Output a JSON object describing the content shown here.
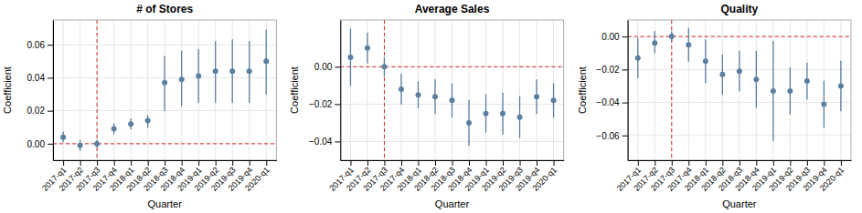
{
  "chart_data": [
    {
      "type": "scatter",
      "title": "# of Stores",
      "x_label": "Quarter",
      "y_label": "Coefficient",
      "categories": [
        "2017-q1",
        "2017-q2",
        "2017-q3",
        "2017-q4",
        "2018-q1",
        "2018-q2",
        "2018-q3",
        "2018-q4",
        "2019-q1",
        "2019-q2",
        "2019-q3",
        "2019-q4",
        "2020-q1"
      ],
      "values": [
        0.004,
        -0.001,
        0.0,
        0.009,
        0.012,
        0.014,
        0.037,
        0.039,
        0.041,
        0.044,
        0.044,
        0.044,
        0.05
      ],
      "ci_lo": [
        0.001,
        -0.004,
        -0.002,
        0.006,
        0.009,
        0.01,
        0.02,
        0.023,
        0.025,
        0.025,
        0.025,
        0.025,
        0.03
      ],
      "ci_hi": [
        0.007,
        0.002,
        0.002,
        0.012,
        0.015,
        0.017,
        0.053,
        0.056,
        0.057,
        0.062,
        0.063,
        0.062,
        0.069
      ],
      "color": "#5a7fa0",
      "hline": 0,
      "vline": "2017-q3",
      "ylim": [
        -0.01,
        0.075
      ],
      "yticks": [
        {
          "value": 0,
          "label": "0.00"
        },
        0.02,
        0.04,
        0.06
      ],
      "grid": true
    },
    {
      "type": "scatter",
      "title": "Average Sales",
      "x_label": "Quarter",
      "y_label": "Coefficient",
      "categories": [
        "2017-q1",
        "2017-q2",
        "2017-q3",
        "2017-q4",
        "2018-q1",
        "2018-q2",
        "2018-q3",
        "2018-q4",
        "2019-q1",
        "2019-q2",
        "2019-q3",
        "2019-q4",
        "2020-q1"
      ],
      "values": [
        0.005,
        0.01,
        0.0,
        -0.012,
        -0.015,
        -0.016,
        -0.018,
        -0.03,
        -0.025,
        -0.025,
        -0.027,
        -0.016,
        -0.018
      ],
      "ci_lo": [
        -0.01,
        0.002,
        -0.005,
        -0.02,
        -0.022,
        -0.025,
        -0.027,
        -0.042,
        -0.035,
        -0.036,
        -0.038,
        -0.025,
        -0.027
      ],
      "ci_hi": [
        0.02,
        0.018,
        0.005,
        -0.004,
        -0.008,
        -0.007,
        -0.009,
        -0.018,
        -0.015,
        -0.014,
        -0.016,
        -0.007,
        -0.009
      ],
      "color": "#5a7fa0",
      "hline": 0,
      "vline": "2017-q3",
      "ylim": [
        -0.05,
        0.025
      ],
      "yticks": [
        {
          "value": -0.04,
          "label": "−0.04"
        },
        {
          "value": -0.02,
          "label": "−0.02"
        },
        {
          "value": 0,
          "label": "0.00"
        }
      ],
      "grid": true
    },
    {
      "type": "scatter",
      "title": "Quality",
      "x_label": "Quarter",
      "y_label": "Coefficient",
      "categories": [
        "2017-q1",
        "2017-q2",
        "2017-q3",
        "2017-q4",
        "2018-q1",
        "2018-q2",
        "2018-q3",
        "2018-q4",
        "2019-q1",
        "2019-q2",
        "2019-q3",
        "2019-q4",
        "2020-q1"
      ],
      "values": [
        -0.013,
        -0.004,
        0.0,
        -0.005,
        -0.015,
        -0.023,
        -0.021,
        -0.026,
        -0.033,
        -0.033,
        -0.027,
        -0.041,
        -0.03
      ],
      "ci_lo": [
        -0.025,
        -0.01,
        -0.003,
        -0.015,
        -0.028,
        -0.035,
        -0.033,
        -0.043,
        -0.063,
        -0.047,
        -0.038,
        -0.055,
        -0.045
      ],
      "ci_hi": [
        -0.001,
        0.003,
        0.003,
        0.005,
        -0.002,
        -0.011,
        -0.009,
        -0.009,
        -0.003,
        -0.019,
        -0.016,
        -0.027,
        -0.015
      ],
      "color": "#5a7fa0",
      "hline": 0,
      "vline": "2017-q3",
      "ylim": [
        -0.075,
        0.01
      ],
      "yticks": [
        {
          "value": -0.06,
          "label": "−0.06"
        },
        {
          "value": -0.04,
          "label": "−0.04"
        },
        {
          "value": -0.02,
          "label": "−0.02"
        },
        {
          "value": 0,
          "label": "0.00"
        }
      ],
      "grid": true
    }
  ]
}
